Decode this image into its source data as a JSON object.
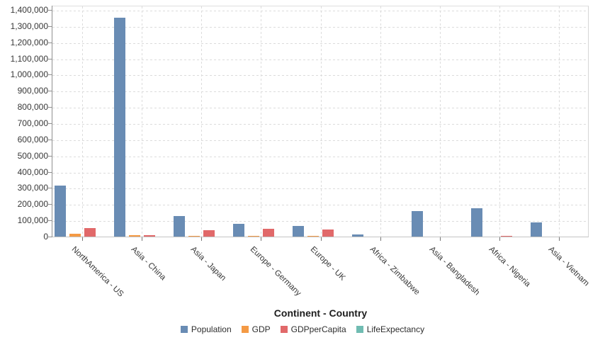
{
  "chart_data": {
    "type": "bar",
    "title": "",
    "xlabel": "Continent - Country",
    "ylabel": "",
    "ylim": [
      0,
      1400000
    ],
    "ytick_step": 100000,
    "grid": true,
    "legend_position": "bottom",
    "categories": [
      "NorthAmerica - US",
      "Asia - China",
      "Asia - Japan",
      "Europe - Germany",
      "Europe - UK",
      "Africa - Zimbabwe",
      "Asia - Bangladesh",
      "Africa - Nigeria",
      "Asia - Vietnam"
    ],
    "series": [
      {
        "name": "Population",
        "color": "#698cb4",
        "values": [
          313085,
          1352000,
          127338,
          80621,
          64097,
          14150,
          156595,
          173615,
          89710
        ]
      },
      {
        "name": "GDP",
        "color": "#f49a45",
        "values": [
          16768,
          9240,
          4920,
          3730,
          2678,
          13.5,
          150,
          522,
          171
        ]
      },
      {
        "name": "GDPperCapita",
        "color": "#e1696a",
        "values": [
          53042,
          6807,
          38634,
          46269,
          41787,
          953,
          958,
          3006,
          1911
        ]
      },
      {
        "name": "LifeExpectancy",
        "color": "#70bcb2",
        "values": [
          78.8,
          75.2,
          83.3,
          81.0,
          81.5,
          59.9,
          70.7,
          52.5,
          75.8
        ]
      }
    ]
  },
  "colors": {
    "grid": "#dcdcdc",
    "axis": "#8f8f8f",
    "baseline": "#c4c4c4",
    "text": "#383838"
  }
}
